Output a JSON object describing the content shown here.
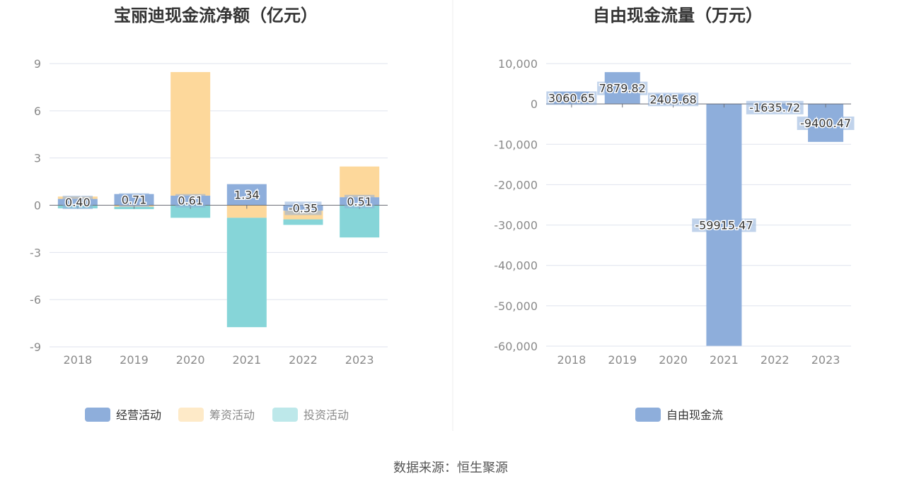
{
  "source": "数据来源：恒生聚源",
  "chart_data": [
    {
      "type": "bar",
      "stacked": true,
      "title": "宝丽迪现金流净额（亿元）",
      "categories": [
        "2018",
        "2019",
        "2020",
        "2021",
        "2022",
        "2023"
      ],
      "ylim": [
        -9,
        9
      ],
      "yticks": [
        9,
        6,
        3,
        0,
        -3,
        -6,
        -9
      ],
      "ytick_labels": [
        "9",
        "6",
        "3",
        "0",
        "-3",
        "-6",
        "-9"
      ],
      "grid": true,
      "legend_position": "bottom",
      "series": [
        {
          "name": "经营活动",
          "color": "#8eaedb",
          "values": [
            0.4,
            0.71,
            0.61,
            1.34,
            -0.35,
            0.51
          ],
          "labels": [
            "0.40",
            "0.71",
            "0.61",
            "1.34",
            "-0.35",
            "0.51"
          ]
        },
        {
          "name": "筹资活动",
          "color": "#fdd89b",
          "values": [
            0.15,
            -0.1,
            7.85,
            -0.8,
            -0.55,
            1.95
          ]
        },
        {
          "name": "投资活动",
          "color": "#86d5d8",
          "values": [
            -0.2,
            -0.15,
            -0.8,
            -6.95,
            -0.35,
            -2.05
          ]
        }
      ]
    },
    {
      "type": "bar",
      "title": "自由现金流量（万元）",
      "categories": [
        "2018",
        "2019",
        "2020",
        "2021",
        "2022",
        "2023"
      ],
      "ylim": [
        -60000,
        10000
      ],
      "yticks": [
        10000,
        0,
        -10000,
        -20000,
        -30000,
        -40000,
        -50000,
        -60000
      ],
      "ytick_labels": [
        "10,000",
        "0",
        "-10,000",
        "-20,000",
        "-30,000",
        "-40,000",
        "-50,000",
        "-60,000"
      ],
      "grid": true,
      "legend_position": "bottom",
      "series": [
        {
          "name": "自由现金流",
          "color": "#8eaedb",
          "values": [
            3060.65,
            7879.82,
            2405.68,
            -59915.47,
            -1635.72,
            -9400.47
          ],
          "labels": [
            "3060.65",
            "7879.82",
            "2405.68",
            "-59915.47",
            "-1635.72",
            "-9400.47"
          ]
        }
      ]
    }
  ]
}
